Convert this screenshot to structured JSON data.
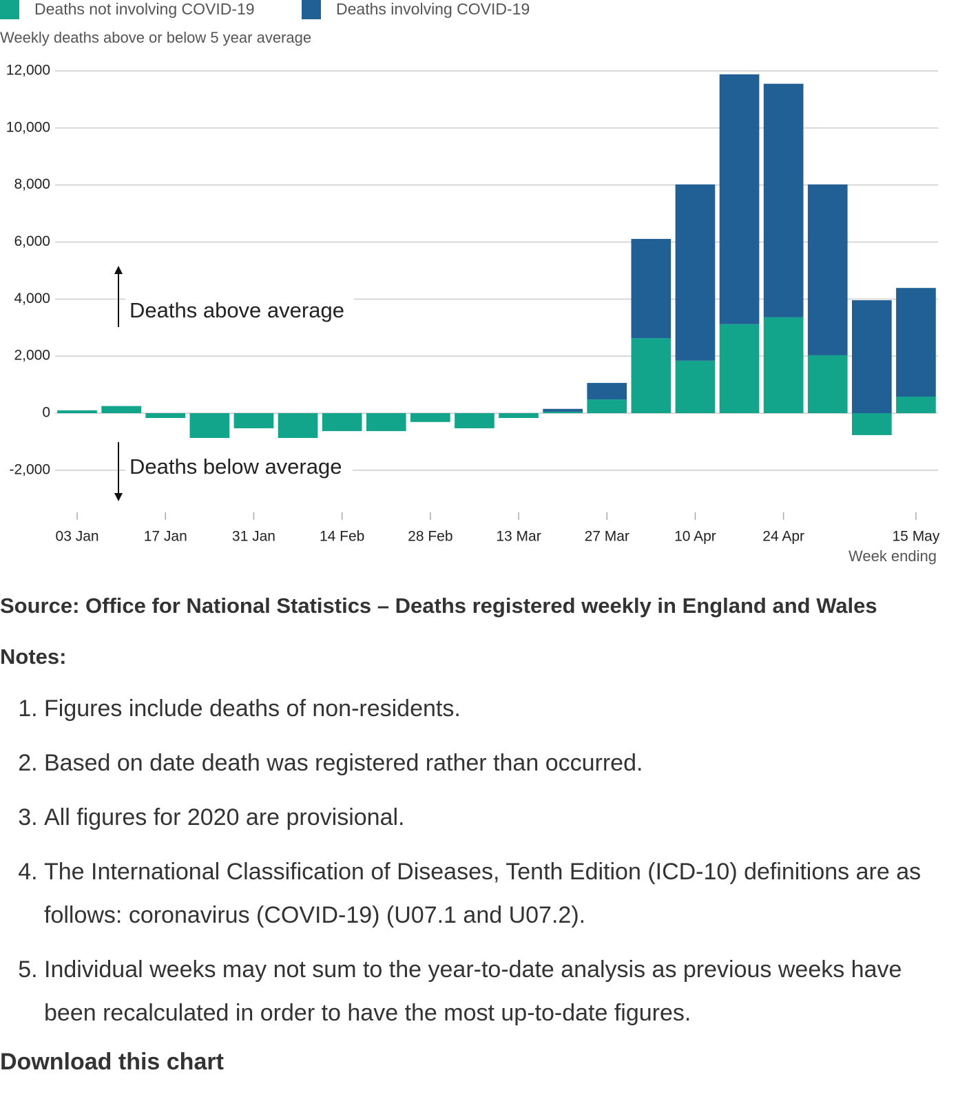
{
  "chart_data": {
    "type": "stacked-bar",
    "subtitle": "Weekly deaths above or below 5 year average",
    "xlabel": "Week ending",
    "annotations": [
      "Deaths above average",
      "Deaths below average"
    ],
    "categories": [
      "03 Jan",
      null,
      "17 Jan",
      null,
      "31 Jan",
      null,
      "14 Feb",
      null,
      "28 Feb",
      null,
      "13 Mar",
      null,
      "27 Mar",
      null,
      "10 Apr",
      null,
      "24 Apr",
      null,
      null,
      "15 May"
    ],
    "series": [
      {
        "name": "Deaths not involving COVID-19",
        "color": "#13a58b",
        "values": [
          100,
          250,
          -170,
          -870,
          -530,
          -870,
          -630,
          -630,
          -310,
          -530,
          -170,
          50,
          480,
          2630,
          1840,
          3120,
          3360,
          2030,
          -770,
          580
        ]
      },
      {
        "name": "Deaths involving COVID-19",
        "color": "#206095",
        "values": [
          0,
          0,
          0,
          0,
          0,
          0,
          0,
          0,
          0,
          0,
          0,
          100,
          580,
          3480,
          6180,
          8760,
          8190,
          5990,
          3960,
          3810
        ]
      }
    ],
    "ylim": [
      -3000,
      12000
    ],
    "yticks": [
      {
        "value": -2000,
        "label": "-2,000"
      },
      0,
      {
        "value": 2000,
        "label": "2,000"
      },
      {
        "value": 4000,
        "label": "4,000"
      },
      {
        "value": 6000,
        "label": "6,000"
      },
      {
        "value": 8000,
        "label": "8,000"
      },
      {
        "value": 10000,
        "label": "10,000"
      },
      {
        "value": 12000,
        "label": "12,000"
      }
    ],
    "grid": true
  },
  "source": "Source: Office for National Statistics – Deaths registered weekly in England and Wales",
  "notes_heading": "Notes:",
  "notes": [
    "Figures include deaths of non-residents.",
    "Based on date death was registered rather than occurred.",
    "All figures for 2020 are provisional.",
    "The International Classification of Diseases, Tenth Edition (ICD-10) definitions are as follows: coronavirus (COVID-19) (U07.1 and U07.2).",
    "Individual weeks may not sum to the year-to-date analysis as previous weeks have been recalculated in order to have the most up-to-date figures."
  ],
  "footer_heading": "Download this chart"
}
